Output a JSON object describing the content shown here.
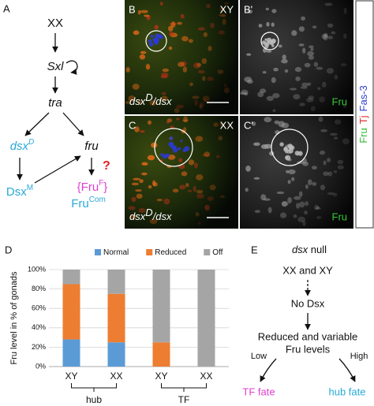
{
  "panel_labels": {
    "a": "A",
    "b": "B",
    "b2": "B'",
    "c": "C",
    "c2": "C'",
    "d": "D",
    "e": "E"
  },
  "diagram_a": {
    "xx": "XX",
    "sxl": "Sxl",
    "tra": "tra",
    "dsxd": {
      "base": "dsx",
      "sup": "D"
    },
    "fru": "fru",
    "dsxm": {
      "base": "Dsx",
      "sup": "M"
    },
    "fruf": {
      "open": "{Fru",
      "sup": "F",
      "close": "}"
    },
    "question": "?",
    "frucom": {
      "base": "Fru",
      "sup": "Com"
    }
  },
  "images": [
    {
      "sex": "XY",
      "genotype": {
        "base": "dsx",
        "sup": "D",
        "rest": "/dsx"
      },
      "channel": "Fru"
    },
    {
      "sex": "XX",
      "genotype": {
        "base": "dsx",
        "sup": "D",
        "rest": "/dsx"
      },
      "channel": "Fru"
    }
  ],
  "channel_key": [
    {
      "text": "Fru",
      "color": "#33bb33"
    },
    {
      "text": "Tj",
      "color": "#e03030"
    },
    {
      "text": "Fas-3",
      "color": "#3040d0"
    }
  ],
  "chart_data": {
    "type": "stacked_bar",
    "y_label": "Fru level in % of gonads",
    "categories": [
      "XY",
      "XX",
      "XY",
      "XX"
    ],
    "groups": [
      "hub",
      "TF"
    ],
    "series": [
      {
        "name": "Normal",
        "color": "#5b9bd5",
        "values": [
          28,
          25,
          0,
          0
        ]
      },
      {
        "name": "Reduced",
        "color": "#ed7d31",
        "values": [
          57,
          50,
          25,
          0
        ]
      },
      {
        "name": "Off",
        "color": "#a5a5a5",
        "values": [
          15,
          25,
          75,
          100
        ]
      }
    ],
    "ylim": [
      0,
      100
    ],
    "yticks": [
      {
        "value": 0,
        "label": "0%"
      },
      {
        "value": 20,
        "label": "20%"
      },
      {
        "value": 40,
        "label": "40%"
      },
      {
        "value": 60,
        "label": "60%"
      },
      {
        "value": 80,
        "label": "80%"
      },
      {
        "value": 100,
        "label": "100%"
      }
    ],
    "grid": true,
    "legend": "top"
  },
  "diagram_e": {
    "heading": {
      "gene": "dsx",
      "rest": " null"
    },
    "karyotype": "XX and XY",
    "no_dsx": "No Dsx",
    "outcome_line1": "Reduced and variable",
    "outcome_line2": "Fru levels",
    "low": "Low",
    "high": "High",
    "tf_fate": "TF fate",
    "hub_fate": "hub fate"
  }
}
